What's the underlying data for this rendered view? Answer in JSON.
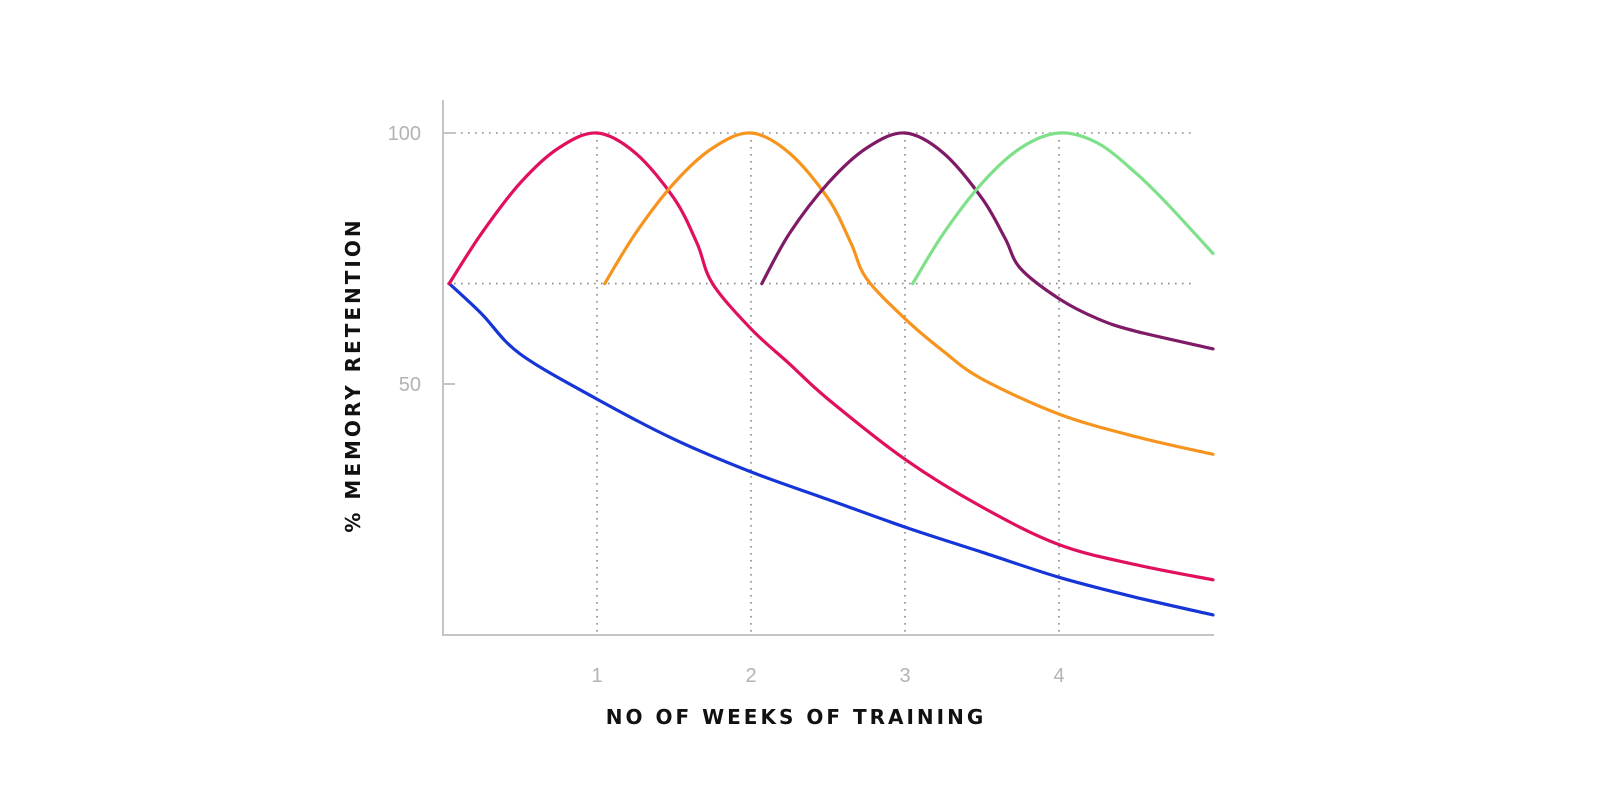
{
  "chart_data": {
    "type": "line",
    "title": "",
    "xlabel": "NO OF WEEKS OF TRAINING",
    "ylabel": "% MEMORY RETENTION",
    "xlim": [
      0,
      5
    ],
    "ylim": [
      0,
      100
    ],
    "x_ticks": [
      {
        "value": 1,
        "label": "1"
      },
      {
        "value": 2,
        "label": "2"
      },
      {
        "value": 3,
        "label": "3"
      },
      {
        "value": 4,
        "label": "4"
      }
    ],
    "y_ticks": [
      {
        "value": 50,
        "label": "50"
      },
      {
        "value": 100,
        "label": "100"
      }
    ],
    "grid": {
      "horizontal": [
        100,
        70
      ],
      "vertical": [
        1,
        2,
        3,
        4
      ],
      "style": "dotted"
    },
    "legend": "none",
    "series": [
      {
        "color": "#1535d8",
        "points": [
          [
            0.04,
            70
          ],
          [
            0.25,
            64
          ],
          [
            0.5,
            56
          ],
          [
            1.0,
            47
          ],
          [
            1.5,
            39
          ],
          [
            2.0,
            32.5
          ],
          [
            2.5,
            27
          ],
          [
            3.0,
            21.5
          ],
          [
            3.5,
            16.5
          ],
          [
            4.0,
            11.5
          ],
          [
            4.5,
            7.5
          ],
          [
            5.0,
            4
          ]
        ]
      },
      {
        "color": "#e0105e",
        "points": [
          [
            0.04,
            70
          ],
          [
            0.25,
            80
          ],
          [
            0.5,
            90
          ],
          [
            0.75,
            97
          ],
          [
            1.0,
            100
          ],
          [
            1.25,
            96
          ],
          [
            1.5,
            87
          ],
          [
            1.65,
            78
          ],
          [
            1.75,
            70
          ],
          [
            2.0,
            61
          ],
          [
            2.25,
            54
          ],
          [
            2.5,
            47
          ],
          [
            3.0,
            35
          ],
          [
            3.5,
            25.5
          ],
          [
            4.0,
            18
          ],
          [
            4.5,
            14
          ],
          [
            5.0,
            11
          ]
        ]
      },
      {
        "color": "#f7941d",
        "points": [
          [
            1.05,
            70
          ],
          [
            1.25,
            80
          ],
          [
            1.5,
            90
          ],
          [
            1.75,
            97
          ],
          [
            2.0,
            100
          ],
          [
            2.25,
            96
          ],
          [
            2.5,
            87
          ],
          [
            2.65,
            78
          ],
          [
            2.75,
            71
          ],
          [
            3.0,
            63
          ],
          [
            3.25,
            56.5
          ],
          [
            3.5,
            51
          ],
          [
            4.0,
            44
          ],
          [
            4.5,
            39.5
          ],
          [
            5.0,
            36
          ]
        ]
      },
      {
        "color": "#7f1b66",
        "points": [
          [
            2.07,
            70
          ],
          [
            2.25,
            80
          ],
          [
            2.5,
            90
          ],
          [
            2.75,
            97
          ],
          [
            3.0,
            100
          ],
          [
            3.25,
            96
          ],
          [
            3.5,
            87
          ],
          [
            3.65,
            79
          ],
          [
            3.75,
            73
          ],
          [
            4.0,
            67
          ],
          [
            4.25,
            63
          ],
          [
            4.5,
            60.5
          ],
          [
            5.0,
            57
          ]
        ]
      },
      {
        "color": "#7fe08a",
        "points": [
          [
            3.05,
            70
          ],
          [
            3.25,
            80
          ],
          [
            3.5,
            90
          ],
          [
            3.75,
            97
          ],
          [
            4.0,
            100
          ],
          [
            4.25,
            98
          ],
          [
            4.5,
            92
          ],
          [
            4.7,
            86
          ],
          [
            5.0,
            76
          ]
        ]
      }
    ]
  }
}
